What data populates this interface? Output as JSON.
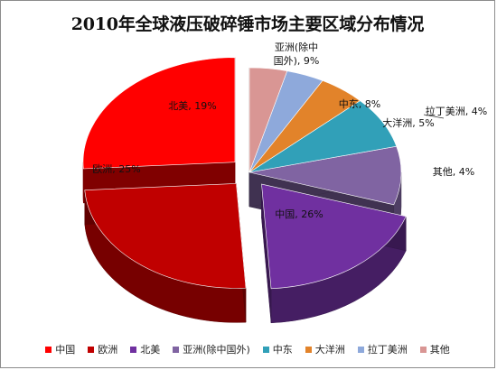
{
  "title": "2010年全球液压破碎锤市场主要区域分布情况",
  "chart_data": {
    "type": "pie",
    "title": "2010年全球液压破碎锤市场主要区域分布情况",
    "slices": [
      {
        "label": "中国",
        "value": 26,
        "color": "#ff0000",
        "data_label": "中国, 26%",
        "exploded": true
      },
      {
        "label": "欧洲",
        "value": 25,
        "color": "#c00000",
        "data_label": "欧洲, 25%",
        "exploded": true
      },
      {
        "label": "北美",
        "value": 19,
        "color": "#7030a0",
        "data_label": "北美, 19%",
        "exploded": true
      },
      {
        "label": "亚洲(除中国外)",
        "value": 9,
        "color": "#8064a2",
        "data_label": "亚洲(除中国外), 9%",
        "data_label_lines": [
          "亚洲(除中",
          "国外), 9%"
        ],
        "exploded": false
      },
      {
        "label": "中东",
        "value": 8,
        "color": "#31a0b8",
        "data_label": "中东, 8%",
        "exploded": false
      },
      {
        "label": "大洋洲",
        "value": 5,
        "color": "#e2832a",
        "data_label": "大洋洲, 5%",
        "exploded": false
      },
      {
        "label": "拉丁美洲",
        "value": 4,
        "color": "#8ea9db",
        "data_label": "拉丁美洲, 4%",
        "exploded": false
      },
      {
        "label": "其他",
        "value": 4,
        "color": "#d99694",
        "data_label": "其他, 4%",
        "exploded": false
      }
    ],
    "legend_position": "bottom",
    "style": "3d-exploded"
  },
  "legend": [
    {
      "label": "中国",
      "color": "#ff0000"
    },
    {
      "label": "欧洲",
      "color": "#c00000"
    },
    {
      "label": "北美",
      "color": "#7030a0"
    },
    {
      "label": "亚洲(除中国外)",
      "color": "#8064a2"
    },
    {
      "label": "中东",
      "color": "#31a0b8"
    },
    {
      "label": "大洋洲",
      "color": "#e2832a"
    },
    {
      "label": "拉丁美洲",
      "color": "#8ea9db"
    },
    {
      "label": "其他",
      "color": "#d99694"
    }
  ]
}
